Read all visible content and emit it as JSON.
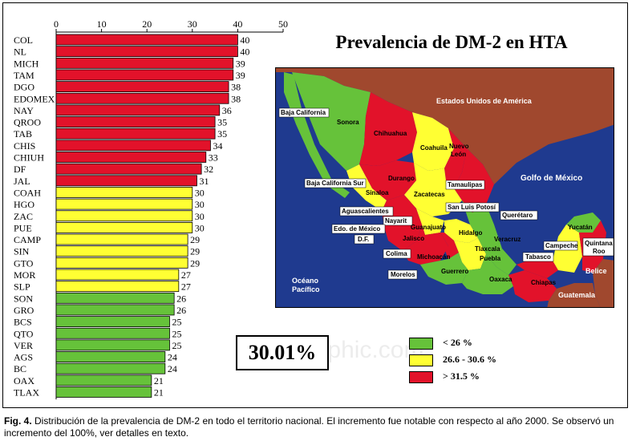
{
  "chart_data": {
    "type": "bar",
    "orientation": "horizontal",
    "xlim": [
      0,
      50
    ],
    "ticks": [
      0,
      10,
      20,
      30,
      40,
      50
    ],
    "title": "",
    "xlabel": "",
    "ylabel": "",
    "categories": [
      "COL",
      "NL",
      "MICH",
      "TAM",
      "DGO",
      "EDOMEX",
      "NAY",
      "QROO",
      "TAB",
      "CHIS",
      "CHIUH",
      "DF",
      "JAL",
      "COAH",
      "HGO",
      "ZAC",
      "PUE",
      "CAMP",
      "SIN",
      "GTO",
      "MOR",
      "SLP",
      "SON",
      "GRO",
      "BCS",
      "QTO",
      "VER",
      "AGS",
      "BC",
      "OAX",
      "TLAX"
    ],
    "values": [
      40,
      40,
      39,
      39,
      38,
      38,
      36,
      35,
      35,
      34,
      33,
      32,
      31,
      30,
      30,
      30,
      30,
      29,
      29,
      29,
      27,
      27,
      26,
      26,
      25,
      25,
      25,
      24,
      24,
      21,
      21
    ],
    "colors": {
      "high": "#e2122a",
      "mid": "#ffff33",
      "low": "#66c23a"
    }
  },
  "map": {
    "title": "Prevalencia de DM-2 en HTA",
    "labels": {
      "usa": "Estados Unidos de América",
      "gulf": "Golfo de México",
      "pacific_1": "Océano",
      "pacific_2": "Pacífico",
      "belice": "Belice",
      "guatemala": "Guatemala",
      "baja_california": "Baja California",
      "sonora": "Sonora",
      "chihuahua": "Chihuahua",
      "coahuila": "Coahuila",
      "nuevo_leon_1": "Nuevo",
      "nuevo_leon_2": "León",
      "durango": "Durango",
      "tamaulipas": "Tamaulipas",
      "bcs": "Baja California Sur",
      "sinaloa": "Sinaloa",
      "zacatecas": "Zacatecas",
      "aguascalientes": "Aguascalientes",
      "slp": "San Luis Potosí",
      "nayarit": "Nayarit",
      "queretaro": "Querétaro",
      "edomex": "Edo. de México",
      "guanajuato": "Guanajuato",
      "hidalgo": "Hidalgo",
      "df": "D.F.",
      "jalisco": "Jalisco",
      "veracruz": "Veracruz",
      "yucatan": "Yucatán",
      "campeche": "Campeche",
      "quintana_roo_1": "Quintana",
      "quintana_roo_2": "Roo",
      "colima": "Colima",
      "michoacan": "Michoacán",
      "tlaxcala": "Tlaxcala",
      "tabasco": "Tabasco",
      "puebla": "Puebla",
      "guerrero": "Guerrero",
      "morelos": "Morelos",
      "oaxaca": "Oaxaca",
      "chiapas": "Chiapas"
    }
  },
  "overall_value": "30.01%",
  "legend": [
    {
      "label": "< 26   %",
      "color": "#66c23a"
    },
    {
      "label": "26.6 - 30.6 %",
      "color": "#ffff33"
    },
    {
      "label": "> 31.5   %",
      "color": "#e2122a"
    }
  ],
  "watermark": "medigraphic.com",
  "caption": {
    "fig": "Fig. 4.",
    "text": " Distribución de la prevalencia de DM-2 en todo el territorio nacional. El incremento fue notable con respecto al año 2000. Se observó un incremento del 100%, ver detalles en texto."
  }
}
